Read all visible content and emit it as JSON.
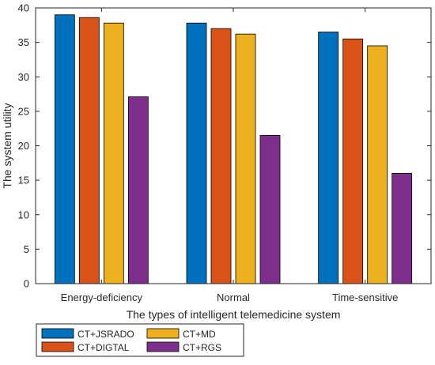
{
  "chart_data": {
    "type": "bar",
    "title": "",
    "xlabel": "The types of intelligent telemedicine system",
    "ylabel": "The system utility",
    "ylim": [
      0,
      40
    ],
    "yticks": [
      0,
      5,
      10,
      15,
      20,
      25,
      30,
      35,
      40
    ],
    "grid": false,
    "categories": [
      "Energy-deficiency",
      "Normal",
      "Time-sensitive"
    ],
    "series": [
      {
        "name": "CT+JSRADO",
        "color": "#0072BD",
        "values": [
          39.0,
          37.8,
          36.5
        ]
      },
      {
        "name": "CT+DIGTAL",
        "color": "#D95319",
        "values": [
          38.6,
          37.0,
          35.5
        ]
      },
      {
        "name": "CT+MD",
        "color": "#EDB120",
        "values": [
          37.8,
          36.2,
          34.5
        ]
      },
      {
        "name": "CT+RGS",
        "color": "#7E2F8E",
        "values": [
          27.1,
          21.5,
          16.0
        ]
      }
    ],
    "legend": {
      "placement": "bottom-left",
      "columns": 2
    }
  }
}
